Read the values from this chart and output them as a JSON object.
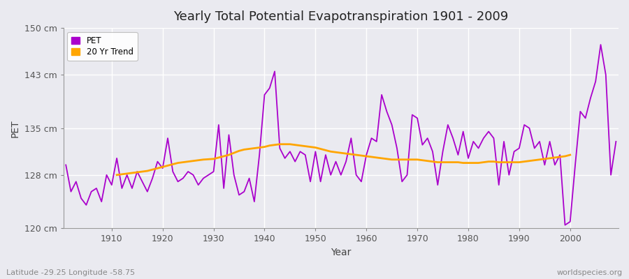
{
  "title": "Yearly Total Potential Evapotranspiration 1901 - 2009",
  "xlabel": "Year",
  "ylabel": "PET",
  "lat_lon_label": "Latitude -29.25 Longitude -58.75",
  "watermark": "worldspecies.org",
  "ylim": [
    120,
    150
  ],
  "yticks": [
    120,
    128,
    135,
    143,
    150
  ],
  "ytick_labels": [
    "120 cm",
    "128 cm",
    "135 cm",
    "143 cm",
    "150 cm"
  ],
  "xtick_start": 1910,
  "xtick_end": 2000,
  "xtick_step": 10,
  "pet_color": "#AA00CC",
  "trend_color": "#FFA500",
  "fig_bg_color": "#EAEAF0",
  "plot_bg_color": "#EAEAF0",
  "grid_color": "#FFFFFF",
  "legend_labels": [
    "PET",
    "20 Yr Trend"
  ],
  "years": [
    1901,
    1902,
    1903,
    1904,
    1905,
    1906,
    1907,
    1908,
    1909,
    1910,
    1911,
    1912,
    1913,
    1914,
    1915,
    1916,
    1917,
    1918,
    1919,
    1920,
    1921,
    1922,
    1923,
    1924,
    1925,
    1926,
    1927,
    1928,
    1929,
    1930,
    1931,
    1932,
    1933,
    1934,
    1935,
    1936,
    1937,
    1938,
    1939,
    1940,
    1941,
    1942,
    1943,
    1944,
    1945,
    1946,
    1947,
    1948,
    1949,
    1950,
    1951,
    1952,
    1953,
    1954,
    1955,
    1956,
    1957,
    1958,
    1959,
    1960,
    1961,
    1962,
    1963,
    1964,
    1965,
    1966,
    1967,
    1968,
    1969,
    1970,
    1971,
    1972,
    1973,
    1974,
    1975,
    1976,
    1977,
    1978,
    1979,
    1980,
    1981,
    1982,
    1983,
    1984,
    1985,
    1986,
    1987,
    1988,
    1989,
    1990,
    1991,
    1992,
    1993,
    1994,
    1995,
    1996,
    1997,
    1998,
    1999,
    2000,
    2001,
    2002,
    2003,
    2004,
    2005,
    2006,
    2007,
    2008,
    2009
  ],
  "pet_values": [
    129.5,
    125.5,
    127.0,
    124.5,
    123.5,
    125.5,
    126.0,
    124.0,
    128.0,
    126.5,
    130.5,
    126.0,
    128.0,
    126.0,
    128.5,
    127.0,
    125.5,
    127.5,
    130.0,
    129.0,
    133.5,
    128.5,
    127.0,
    127.5,
    128.5,
    128.0,
    126.5,
    127.5,
    128.0,
    128.5,
    135.5,
    126.0,
    134.0,
    128.0,
    125.0,
    125.5,
    127.5,
    124.0,
    131.0,
    140.0,
    141.0,
    143.5,
    132.0,
    130.5,
    131.5,
    130.0,
    131.5,
    131.0,
    127.0,
    131.5,
    127.0,
    131.0,
    128.0,
    130.0,
    128.0,
    130.0,
    133.5,
    128.0,
    127.0,
    131.0,
    133.5,
    133.0,
    140.0,
    137.5,
    135.5,
    132.0,
    127.0,
    128.0,
    137.0,
    136.5,
    132.5,
    133.5,
    131.5,
    126.5,
    131.5,
    135.5,
    133.5,
    131.0,
    134.5,
    130.5,
    133.0,
    132.0,
    133.5,
    134.5,
    133.5,
    126.5,
    133.0,
    128.0,
    131.5,
    132.0,
    135.5,
    135.0,
    132.0,
    133.0,
    129.5,
    133.0,
    129.5,
    131.0,
    120.5,
    121.0,
    129.5,
    137.5,
    136.5,
    139.5,
    142.0,
    147.5,
    143.0,
    128.0,
    133.0
  ],
  "trend_values": [
    null,
    null,
    null,
    null,
    null,
    null,
    null,
    null,
    null,
    null,
    128.0,
    128.1,
    128.2,
    128.3,
    128.4,
    128.5,
    128.6,
    128.8,
    129.0,
    129.2,
    129.4,
    129.6,
    129.8,
    129.9,
    130.0,
    130.1,
    130.2,
    130.3,
    130.35,
    130.4,
    130.6,
    130.8,
    131.0,
    131.3,
    131.6,
    131.8,
    131.9,
    132.0,
    132.1,
    132.2,
    132.4,
    132.5,
    132.6,
    132.6,
    132.6,
    132.5,
    132.4,
    132.3,
    132.2,
    132.1,
    131.9,
    131.7,
    131.5,
    131.4,
    131.3,
    131.2,
    131.1,
    131.0,
    130.9,
    130.8,
    130.7,
    130.6,
    130.5,
    130.4,
    130.3,
    130.3,
    130.3,
    130.3,
    130.3,
    130.3,
    130.2,
    130.1,
    130.0,
    129.9,
    129.9,
    129.9,
    129.9,
    129.9,
    129.8,
    129.8,
    129.8,
    129.8,
    129.9,
    130.0,
    130.0,
    129.9,
    129.9,
    129.9,
    129.9,
    129.9,
    130.0,
    130.1,
    130.2,
    130.3,
    130.4,
    130.5,
    130.6,
    130.7,
    130.8,
    131.0,
    null,
    null,
    null,
    null,
    null,
    null,
    null,
    null,
    null
  ]
}
